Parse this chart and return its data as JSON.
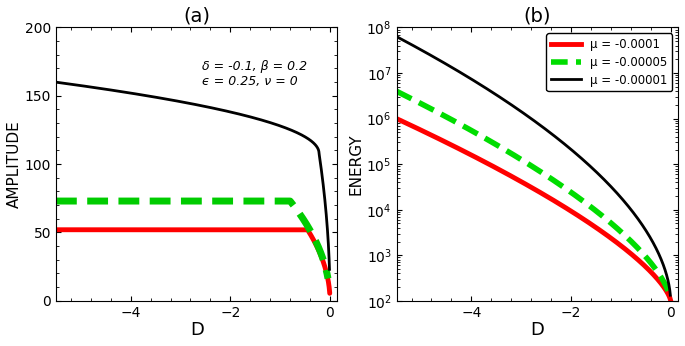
{
  "panel_a": {
    "title": "(a)",
    "xlabel": "D",
    "ylabel": "AMPLITUDE",
    "xlim": [
      -5.5,
      0.15
    ],
    "ylim": [
      0,
      200
    ],
    "xticks": [
      -4,
      -2,
      0
    ],
    "yticks": [
      0,
      50,
      100,
      150,
      200
    ],
    "annotation_line1": "δ = -0.1, β = 0.2",
    "annotation_line2": "ϵ = 0.25, ν = 0"
  },
  "panel_b": {
    "title": "(b)",
    "xlabel": "D",
    "ylabel": "ENERGY",
    "xlim": [
      -5.5,
      0.15
    ],
    "ylim_low": 100,
    "ylim_high": 100000000.0,
    "xticks": [
      -4,
      -2,
      0
    ],
    "legend": [
      {
        "label": "μ = -0.0001",
        "color": "red",
        "linestyle": "solid",
        "linewidth": 3.5
      },
      {
        "label": "μ = -0.00005",
        "color": "#00dd00",
        "linestyle": "dashed",
        "linewidth": 4
      },
      {
        "label": "μ = -0.00001",
        "color": "black",
        "linestyle": "solid",
        "linewidth": 2
      }
    ]
  },
  "background_color": "white"
}
